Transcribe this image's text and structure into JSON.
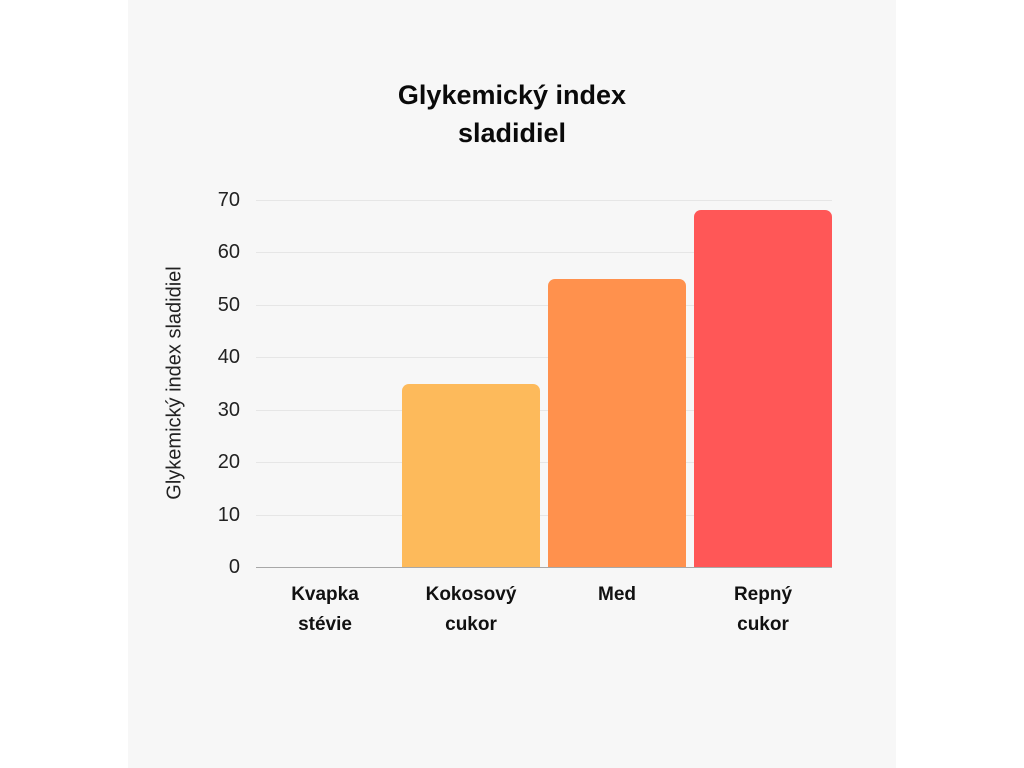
{
  "chart_data": {
    "type": "bar",
    "title": "Glykemický index sladidiel",
    "xlabel": "",
    "ylabel": "Glykemický index sladidiel",
    "categories": [
      "Kvapka stévie",
      "Kokosový cukor",
      "Med",
      "Repný cukor"
    ],
    "values": [
      0,
      35,
      55,
      68
    ],
    "colors": [
      null,
      "#FDBA5B",
      "#FF914D",
      "#FF5757"
    ],
    "ylim": [
      0,
      70
    ],
    "yticks": [
      0,
      10,
      20,
      30,
      40,
      50,
      60,
      70
    ],
    "grid": "horizontal",
    "legend": "none"
  },
  "colors": {
    "page": "#FFFFFF",
    "panel": "#F7F7F7"
  }
}
